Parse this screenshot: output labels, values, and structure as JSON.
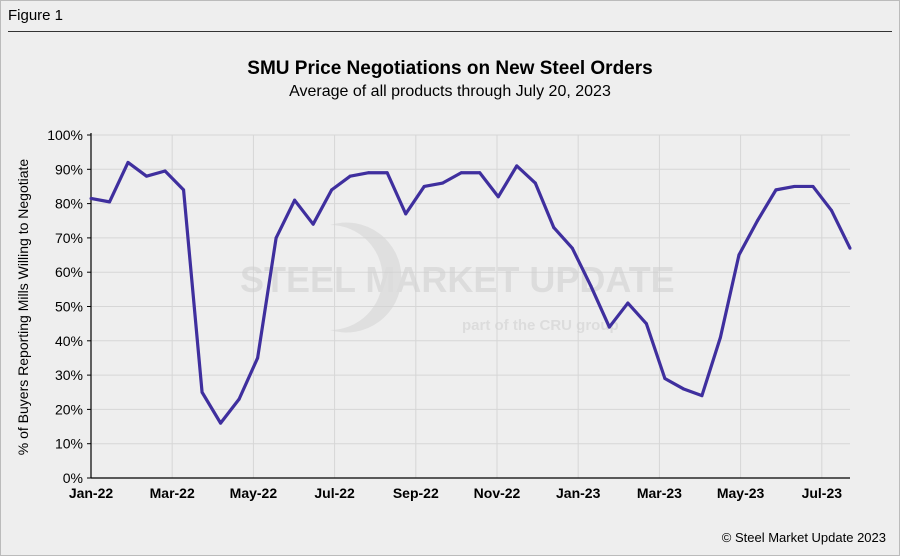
{
  "figure_label": "Figure 1",
  "copyright": "© Steel Market Update 2023",
  "watermark": {
    "main": "STEEL MARKET UPDATE",
    "sub": "part of the CRU group"
  },
  "chart_data": {
    "type": "line",
    "title": "SMU Price Negotiations on New Steel Orders",
    "subtitle": "Average of all products through July 20, 2023",
    "ylabel": "% of Buyers Reporting Mills Willing to Negotiate",
    "xlabel": "",
    "ylim": [
      0,
      100
    ],
    "yticks": [
      "0%",
      "10%",
      "20%",
      "30%",
      "40%",
      "50%",
      "60%",
      "70%",
      "80%",
      "90%",
      "100%"
    ],
    "xticks": [
      "Jan-22",
      "Mar-22",
      "May-22",
      "Jul-22",
      "Sep-22",
      "Nov-22",
      "Jan-23",
      "Mar-23",
      "May-23",
      "Jul-23"
    ],
    "grid": true,
    "line_color": "#3f2f9e",
    "values": [
      81.5,
      80.5,
      92,
      88,
      89.5,
      84,
      25,
      16,
      23,
      35,
      70,
      81,
      74,
      84,
      88,
      89,
      89,
      77,
      85,
      86,
      89,
      89,
      82,
      91,
      86,
      73,
      67,
      56,
      44,
      51,
      45,
      29,
      26,
      24,
      41,
      65,
      75,
      84,
      85,
      85,
      78,
      67
    ]
  }
}
